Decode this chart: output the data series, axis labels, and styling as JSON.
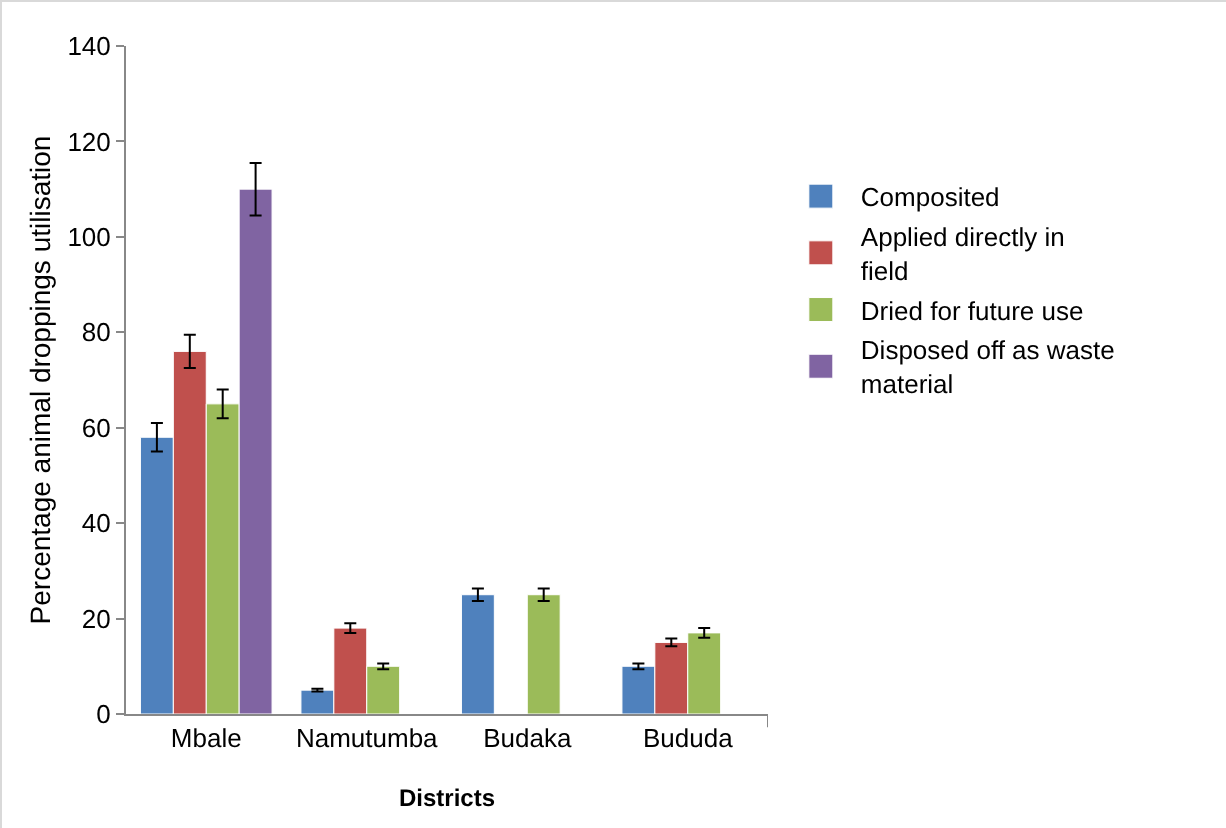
{
  "chart_data": {
    "type": "bar",
    "xlabel": "Districts",
    "ylabel": "Percentage animal droppings utilisation",
    "categories": [
      "Mbale",
      "Namutumba",
      "Budaka",
      "Bududa"
    ],
    "series": [
      {
        "name": "Composited",
        "color": "#4f81bd",
        "values": [
          58,
          5,
          25,
          10
        ],
        "errors": [
          3,
          0.3,
          1.3,
          0.6
        ]
      },
      {
        "name": "Applied directly in field",
        "color": "#c0504d",
        "values": [
          76,
          18,
          null,
          15
        ],
        "errors": [
          3.5,
          1,
          null,
          0.8
        ]
      },
      {
        "name": "Dried for future use",
        "color": "#9bbb59",
        "values": [
          65,
          10,
          25,
          17
        ],
        "errors": [
          3,
          0.6,
          1.3,
          1
        ]
      },
      {
        "name": "Disposed off as waste material",
        "color": "#8064a2",
        "values": [
          110,
          null,
          null,
          null
        ],
        "errors": [
          5.5,
          null,
          null,
          null
        ]
      }
    ],
    "ylim": [
      0,
      140
    ],
    "yticks": [
      0,
      20,
      40,
      60,
      80,
      100,
      120,
      140
    ],
    "grid": false,
    "legend": "right"
  }
}
